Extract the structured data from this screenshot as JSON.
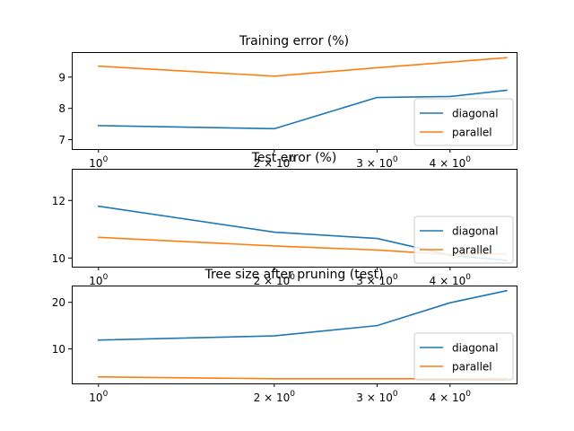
{
  "chart_data": [
    {
      "type": "line",
      "title": "Training error (%)",
      "xscale": "log",
      "xlim": [
        0.9,
        5.2
      ],
      "ylim": [
        6.7,
        9.8
      ],
      "x": [
        1,
        2,
        3,
        4,
        5
      ],
      "x_ticks": [
        {
          "value": 1,
          "base": "10",
          "exp": "0",
          "mult": ""
        },
        {
          "value": 2,
          "base": "10",
          "exp": "0",
          "mult": "2 × "
        },
        {
          "value": 3,
          "base": "10",
          "exp": "0",
          "mult": "3 × "
        },
        {
          "value": 4,
          "base": "10",
          "exp": "0",
          "mult": "4 × "
        }
      ],
      "y_ticks": [
        7,
        8,
        9
      ],
      "legend": "lower right",
      "series": [
        {
          "name": "diagonal",
          "color": "#1f77b4",
          "values": [
            7.45,
            7.35,
            8.35,
            8.38,
            8.58
          ]
        },
        {
          "name": "parallel",
          "color": "#ff7f0e",
          "values": [
            9.35,
            9.03,
            9.3,
            9.48,
            9.62
          ]
        }
      ]
    },
    {
      "type": "line",
      "title": "Test error (%)",
      "xscale": "log",
      "xlim": [
        0.9,
        5.2
      ],
      "ylim": [
        9.7,
        13.1
      ],
      "x": [
        1,
        2,
        3,
        4,
        5
      ],
      "x_ticks": [
        {
          "value": 1,
          "base": "10",
          "exp": "0",
          "mult": ""
        },
        {
          "value": 2,
          "base": "10",
          "exp": "0",
          "mult": "2 × "
        },
        {
          "value": 3,
          "base": "10",
          "exp": "0",
          "mult": "3 × "
        },
        {
          "value": 4,
          "base": "10",
          "exp": "0",
          "mult": "4 × "
        }
      ],
      "y_ticks": [
        10,
        12
      ],
      "legend": "lower right",
      "series": [
        {
          "name": "diagonal",
          "color": "#1f77b4",
          "values": [
            11.8,
            10.9,
            10.68,
            10.1,
            9.92
          ]
        },
        {
          "name": "parallel",
          "color": "#ff7f0e",
          "values": [
            10.72,
            10.42,
            10.28,
            10.12,
            10.15
          ]
        }
      ]
    },
    {
      "type": "line",
      "title": "Tree size after pruning (test)",
      "xscale": "log",
      "xlim": [
        0.9,
        5.2
      ],
      "ylim": [
        2.6,
        23.6
      ],
      "x": [
        1,
        2,
        3,
        4,
        5
      ],
      "x_ticks": [
        {
          "value": 1,
          "base": "10",
          "exp": "0",
          "mult": ""
        },
        {
          "value": 2,
          "base": "10",
          "exp": "0",
          "mult": "2 × "
        },
        {
          "value": 3,
          "base": "10",
          "exp": "0",
          "mult": "3 × "
        },
        {
          "value": 4,
          "base": "10",
          "exp": "0",
          "mult": "4 × "
        }
      ],
      "y_ticks": [
        10,
        20
      ],
      "legend": "lower right",
      "series": [
        {
          "name": "diagonal",
          "color": "#1f77b4",
          "values": [
            11.9,
            12.8,
            15.0,
            19.9,
            22.5
          ]
        },
        {
          "name": "parallel",
          "color": "#ff7f0e",
          "values": [
            4.0,
            3.6,
            3.6,
            3.6,
            3.7
          ]
        }
      ]
    }
  ]
}
